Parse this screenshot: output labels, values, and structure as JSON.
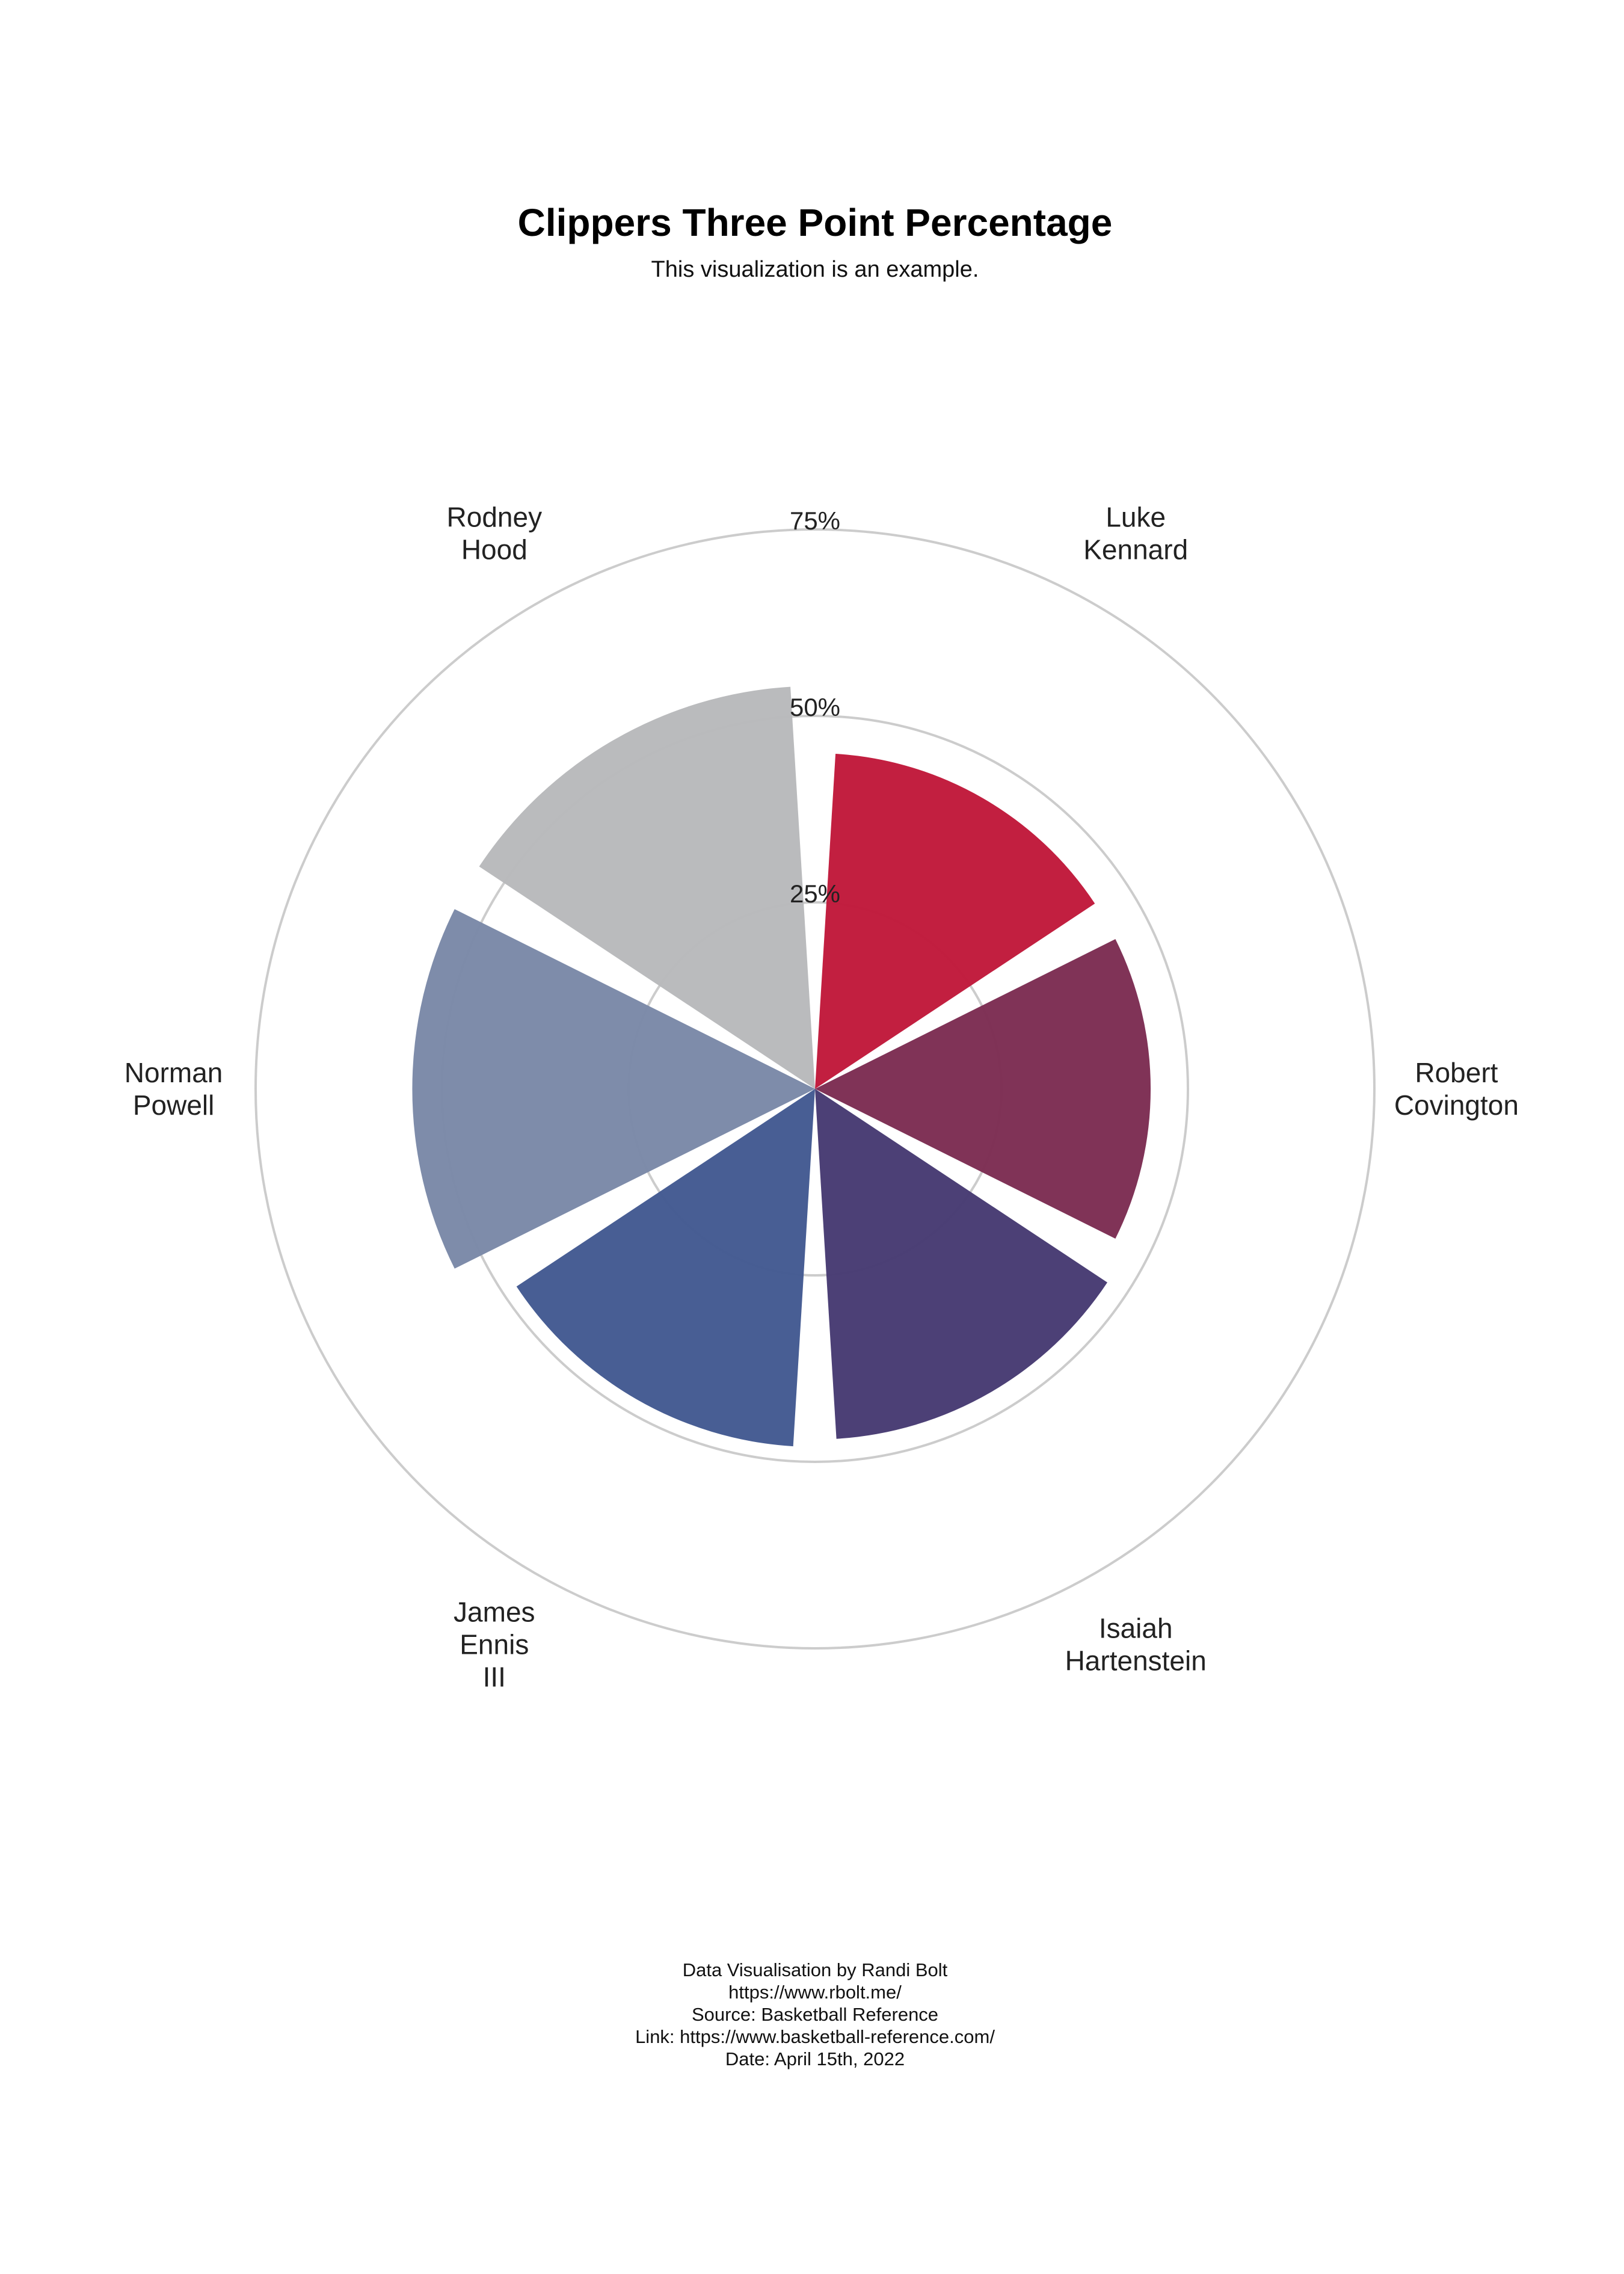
{
  "chart_data": {
    "type": "polar-bar",
    "title": "Clippers Three Point Percentage",
    "subtitle": "This visualization is an example.",
    "radial_ticks": [
      {
        "value": 25,
        "label": "25%"
      },
      {
        "value": 50,
        "label": "50%"
      },
      {
        "value": 75,
        "label": "75%"
      }
    ],
    "rlim": [
      0,
      75
    ],
    "categories": [
      {
        "name": "Luke Kennard",
        "label_lines": [
          "Luke",
          "Kennard"
        ],
        "value": 45,
        "color": "#C0183A"
      },
      {
        "name": "Robert Covington",
        "label_lines": [
          "Robert",
          "Covington"
        ],
        "value": 45,
        "color": "#7C2C52"
      },
      {
        "name": "Isaiah Hartenstein",
        "label_lines": [
          "Isaiah",
          "Hartenstein"
        ],
        "value": 47,
        "color": "#463A72"
      },
      {
        "name": "James Ennis III",
        "label_lines": [
          "James",
          "Ennis",
          "III"
        ],
        "value": 48,
        "color": "#425991"
      },
      {
        "name": "Norman Powell",
        "label_lines": [
          "Norman",
          "Powell"
        ],
        "value": 54,
        "color": "#7A88A7"
      },
      {
        "name": "Rodney Hood",
        "label_lines": [
          "Rodney",
          "Hood"
        ],
        "value": 54,
        "color": "#B8B9BB"
      }
    ],
    "caption_lines": [
      "Data Visualisation by Randi Bolt",
      "https://www.rbolt.me/",
      "Source: Basketball Reference",
      "Link: https://www.basketball-reference.com/",
      "Date: April 15th, 2022"
    ]
  }
}
